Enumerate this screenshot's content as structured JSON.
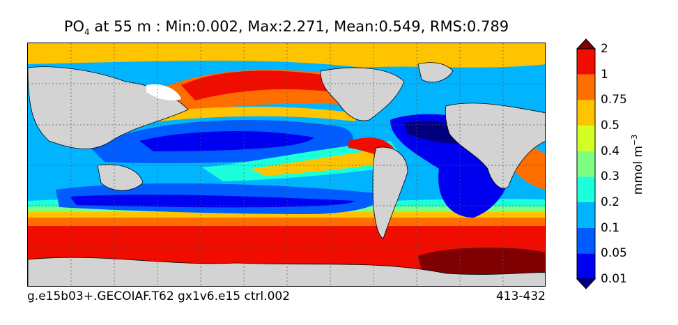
{
  "title": {
    "variable": "PO",
    "subscript": "4",
    "text": " at 55 m : Min:0.002, Max:2.271, Mean:0.549, RMS:0.789"
  },
  "footer": {
    "run_id": "g.e15b03+.GECOIAF.T62 gx1v6.e15 ctrl.002",
    "years": "413-432"
  },
  "colorbar": {
    "unit_prefix": "mmol m",
    "unit_exponent": "−3",
    "levels": [
      "0.01",
      "0.05",
      "0.1",
      "0.2",
      "0.3",
      "0.4",
      "0.5",
      "0.75",
      "1",
      "2"
    ],
    "colors": [
      "#00007f",
      "#0000f0",
      "#005cff",
      "#00b4ff",
      "#1cffdb",
      "#7fff7f",
      "#d4ff23",
      "#ffc400",
      "#ff6f00",
      "#f10c00",
      "#7f0000"
    ]
  },
  "map": {
    "land_color": "#d3d3d3",
    "ice_color": "#ffffff"
  }
}
